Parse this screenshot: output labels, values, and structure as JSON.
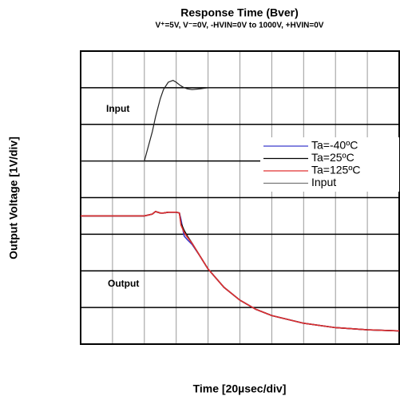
{
  "chart_data": {
    "type": "line",
    "title": "Response Time (Bver)",
    "subtitle": "V⁺=5V, V⁻=0V, -HVIN=0V to 1000V, +HVIN=0V",
    "x_label": "Time [20µsec/div]",
    "y_label": "Output Voltage [1V/div]",
    "annotations": [
      "Input",
      "Output"
    ],
    "x": [
      0,
      10,
      20,
      30,
      40,
      45,
      47,
      50,
      52,
      55,
      58,
      60,
      62,
      63,
      65,
      67,
      70,
      75,
      80,
      90,
      100,
      110,
      120,
      140,
      160,
      180,
      200
    ],
    "series": [
      {
        "name": "Ta=-40ºC",
        "color": "#3a3acc",
        "values": [
          3.5,
          3.5,
          3.5,
          3.5,
          3.5,
          3.55,
          3.62,
          3.58,
          3.58,
          3.6,
          3.6,
          3.6,
          3.58,
          3.4,
          2.95,
          2.85,
          2.72,
          2.4,
          2.05,
          1.55,
          1.2,
          0.95,
          0.78,
          0.57,
          0.45,
          0.39,
          0.36
        ]
      },
      {
        "name": "Ta=25ºC",
        "color": "#000000",
        "values": [
          3.5,
          3.5,
          3.5,
          3.5,
          3.5,
          3.55,
          3.62,
          3.58,
          3.58,
          3.6,
          3.6,
          3.6,
          3.58,
          3.3,
          3.1,
          2.95,
          2.75,
          2.4,
          2.05,
          1.55,
          1.2,
          0.95,
          0.78,
          0.57,
          0.45,
          0.39,
          0.36
        ]
      },
      {
        "name": "Ta=125ºC",
        "color": "#e03030",
        "values": [
          3.5,
          3.5,
          3.5,
          3.5,
          3.5,
          3.55,
          3.62,
          3.58,
          3.58,
          3.6,
          3.6,
          3.6,
          3.58,
          3.25,
          3.05,
          2.92,
          2.75,
          2.4,
          2.05,
          1.55,
          1.2,
          0.95,
          0.78,
          0.57,
          0.45,
          0.39,
          0.36
        ]
      },
      {
        "name": "Input",
        "color": "#222222",
        "values": [
          5.0,
          5.0,
          5.0,
          5.0,
          5.0,
          5.8,
          6.2,
          6.7,
          6.95,
          7.15,
          7.2,
          7.15,
          7.08,
          7.05,
          7.0,
          6.97,
          6.95,
          6.97,
          7.0,
          7.0,
          7.0,
          7.0,
          7.0,
          7.0,
          7.0,
          7.0,
          7.0
        ]
      }
    ],
    "xlim": [
      0,
      200
    ],
    "xticks": [
      0,
      20,
      40,
      60,
      80,
      100,
      120,
      140,
      160,
      180,
      200
    ],
    "ylim": [
      0,
      8
    ],
    "yticks": [
      0,
      1,
      2,
      3,
      4,
      5,
      6,
      7,
      8
    ],
    "grid": true,
    "legend": "right"
  }
}
